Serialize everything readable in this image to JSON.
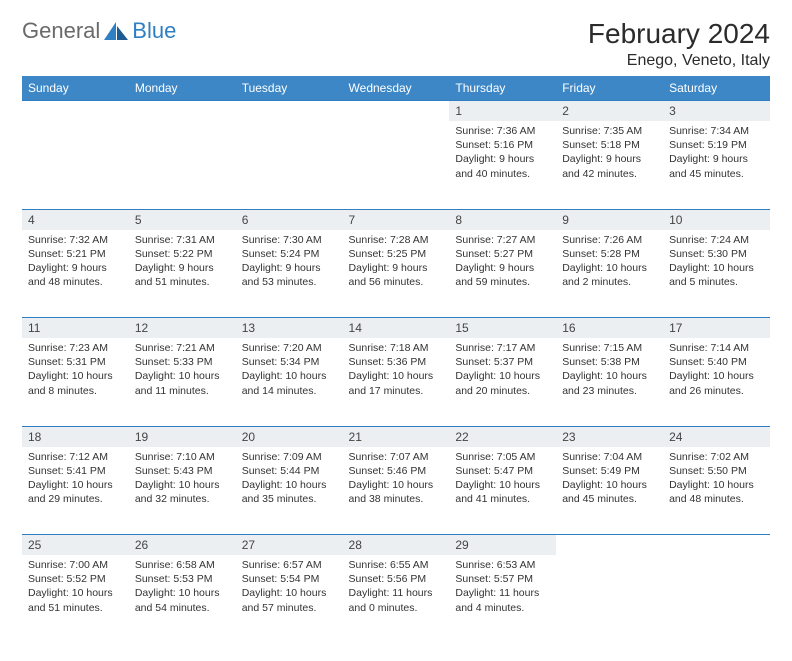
{
  "brand": {
    "text_general": "General",
    "text_blue": "Blue",
    "icon_color": "#2f7fc2"
  },
  "title": "February 2024",
  "location": "Enego, Veneto, Italy",
  "colors": {
    "header_bg": "#3d87c7",
    "header_text": "#ffffff",
    "daynum_bg": "#eceff1",
    "row_border": "#2f7fc2",
    "body_text": "#333333"
  },
  "weekday_labels": [
    "Sunday",
    "Monday",
    "Tuesday",
    "Wednesday",
    "Thursday",
    "Friday",
    "Saturday"
  ],
  "weeks": [
    [
      null,
      null,
      null,
      null,
      {
        "day": "1",
        "sunrise": "7:36 AM",
        "sunset": "5:16 PM",
        "daylight": "9 hours and 40 minutes."
      },
      {
        "day": "2",
        "sunrise": "7:35 AM",
        "sunset": "5:18 PM",
        "daylight": "9 hours and 42 minutes."
      },
      {
        "day": "3",
        "sunrise": "7:34 AM",
        "sunset": "5:19 PM",
        "daylight": "9 hours and 45 minutes."
      }
    ],
    [
      {
        "day": "4",
        "sunrise": "7:32 AM",
        "sunset": "5:21 PM",
        "daylight": "9 hours and 48 minutes."
      },
      {
        "day": "5",
        "sunrise": "7:31 AM",
        "sunset": "5:22 PM",
        "daylight": "9 hours and 51 minutes."
      },
      {
        "day": "6",
        "sunrise": "7:30 AM",
        "sunset": "5:24 PM",
        "daylight": "9 hours and 53 minutes."
      },
      {
        "day": "7",
        "sunrise": "7:28 AM",
        "sunset": "5:25 PM",
        "daylight": "9 hours and 56 minutes."
      },
      {
        "day": "8",
        "sunrise": "7:27 AM",
        "sunset": "5:27 PM",
        "daylight": "9 hours and 59 minutes."
      },
      {
        "day": "9",
        "sunrise": "7:26 AM",
        "sunset": "5:28 PM",
        "daylight": "10 hours and 2 minutes."
      },
      {
        "day": "10",
        "sunrise": "7:24 AM",
        "sunset": "5:30 PM",
        "daylight": "10 hours and 5 minutes."
      }
    ],
    [
      {
        "day": "11",
        "sunrise": "7:23 AM",
        "sunset": "5:31 PM",
        "daylight": "10 hours and 8 minutes."
      },
      {
        "day": "12",
        "sunrise": "7:21 AM",
        "sunset": "5:33 PM",
        "daylight": "10 hours and 11 minutes."
      },
      {
        "day": "13",
        "sunrise": "7:20 AM",
        "sunset": "5:34 PM",
        "daylight": "10 hours and 14 minutes."
      },
      {
        "day": "14",
        "sunrise": "7:18 AM",
        "sunset": "5:36 PM",
        "daylight": "10 hours and 17 minutes."
      },
      {
        "day": "15",
        "sunrise": "7:17 AM",
        "sunset": "5:37 PM",
        "daylight": "10 hours and 20 minutes."
      },
      {
        "day": "16",
        "sunrise": "7:15 AM",
        "sunset": "5:38 PM",
        "daylight": "10 hours and 23 minutes."
      },
      {
        "day": "17",
        "sunrise": "7:14 AM",
        "sunset": "5:40 PM",
        "daylight": "10 hours and 26 minutes."
      }
    ],
    [
      {
        "day": "18",
        "sunrise": "7:12 AM",
        "sunset": "5:41 PM",
        "daylight": "10 hours and 29 minutes."
      },
      {
        "day": "19",
        "sunrise": "7:10 AM",
        "sunset": "5:43 PM",
        "daylight": "10 hours and 32 minutes."
      },
      {
        "day": "20",
        "sunrise": "7:09 AM",
        "sunset": "5:44 PM",
        "daylight": "10 hours and 35 minutes."
      },
      {
        "day": "21",
        "sunrise": "7:07 AM",
        "sunset": "5:46 PM",
        "daylight": "10 hours and 38 minutes."
      },
      {
        "day": "22",
        "sunrise": "7:05 AM",
        "sunset": "5:47 PM",
        "daylight": "10 hours and 41 minutes."
      },
      {
        "day": "23",
        "sunrise": "7:04 AM",
        "sunset": "5:49 PM",
        "daylight": "10 hours and 45 minutes."
      },
      {
        "day": "24",
        "sunrise": "7:02 AM",
        "sunset": "5:50 PM",
        "daylight": "10 hours and 48 minutes."
      }
    ],
    [
      {
        "day": "25",
        "sunrise": "7:00 AM",
        "sunset": "5:52 PM",
        "daylight": "10 hours and 51 minutes."
      },
      {
        "day": "26",
        "sunrise": "6:58 AM",
        "sunset": "5:53 PM",
        "daylight": "10 hours and 54 minutes."
      },
      {
        "day": "27",
        "sunrise": "6:57 AM",
        "sunset": "5:54 PM",
        "daylight": "10 hours and 57 minutes."
      },
      {
        "day": "28",
        "sunrise": "6:55 AM",
        "sunset": "5:56 PM",
        "daylight": "11 hours and 0 minutes."
      },
      {
        "day": "29",
        "sunrise": "6:53 AM",
        "sunset": "5:57 PM",
        "daylight": "11 hours and 4 minutes."
      },
      null,
      null
    ]
  ]
}
